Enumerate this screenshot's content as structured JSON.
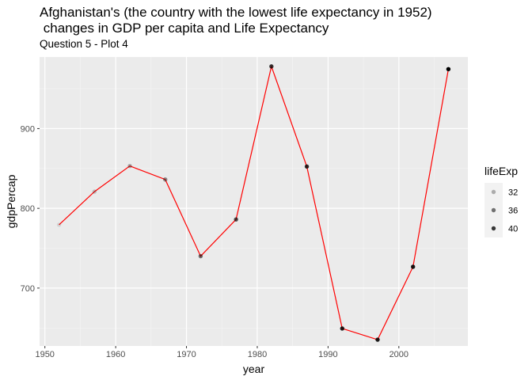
{
  "chart_data": {
    "type": "line",
    "title": "Afghanistan's (the country with the lowest life expectancy in 1952)\n changes in GDP per capita and Life Expectancy",
    "subtitle": "Question 5 - Plot 4",
    "xlabel": "year",
    "ylabel": "gdpPercap",
    "xlim": [
      1949.25,
      2009.75
    ],
    "ylim": [
      627.4,
      989.8
    ],
    "x_ticks": [
      1950,
      1960,
      1970,
      1980,
      1990,
      2000
    ],
    "y_ticks": [
      700,
      800,
      900
    ],
    "grid": true,
    "line_color": "#ff0000",
    "points": [
      {
        "x": 1952,
        "y": 779.4,
        "lifeExp": 28.8
      },
      {
        "x": 1957,
        "y": 820.9,
        "lifeExp": 30.3
      },
      {
        "x": 1962,
        "y": 853.1,
        "lifeExp": 32.0
      },
      {
        "x": 1967,
        "y": 836.2,
        "lifeExp": 34.0
      },
      {
        "x": 1972,
        "y": 740.0,
        "lifeExp": 36.1
      },
      {
        "x": 1977,
        "y": 786.1,
        "lifeExp": 38.4
      },
      {
        "x": 1982,
        "y": 978.0,
        "lifeExp": 39.9
      },
      {
        "x": 1987,
        "y": 852.4,
        "lifeExp": 40.8
      },
      {
        "x": 1992,
        "y": 649.3,
        "lifeExp": 41.7
      },
      {
        "x": 1997,
        "y": 635.3,
        "lifeExp": 41.8
      },
      {
        "x": 2002,
        "y": 726.7,
        "lifeExp": 42.1
      },
      {
        "x": 2007,
        "y": 974.6,
        "lifeExp": 43.8
      }
    ],
    "legend": {
      "title": "lifeExp",
      "position": "right",
      "entries": [
        {
          "label": "32",
          "value": 32
        },
        {
          "label": "36",
          "value": 36
        },
        {
          "label": "40",
          "value": 40
        }
      ]
    }
  }
}
